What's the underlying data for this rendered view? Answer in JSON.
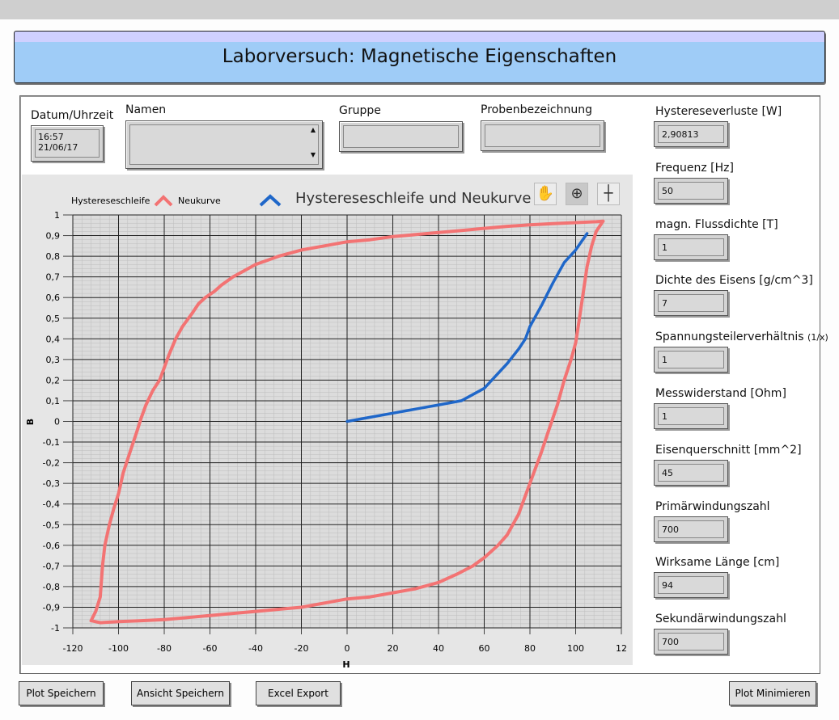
{
  "header": {
    "title": "Laborversuch: Magnetische Eigenschaften"
  },
  "info": {
    "datetime_label": "Datum/Uhrzeit",
    "time": "16:57",
    "date": "21/06/17",
    "names_label": "Namen",
    "names_value": "",
    "group_label": "Gruppe",
    "group_value": "",
    "sample_label": "Probenbezeichnung",
    "sample_value": ""
  },
  "parameters": [
    {
      "label": "Hystereseverluste [W]",
      "value": "2,90813"
    },
    {
      "label": "Frequenz [Hz]",
      "value": "50"
    },
    {
      "label": "magn. Flussdichte [T]",
      "value": "1"
    },
    {
      "label": "Dichte des Eisens [g/cm^3]",
      "value": "7"
    },
    {
      "label": "Spannungsteilerverhältnis",
      "label_suffix": "(1/x)",
      "value": "1"
    },
    {
      "label": "Messwiderstand [Ohm]",
      "value": "1"
    },
    {
      "label": "Eisenquerschnitt [mm^2]",
      "value": "45"
    },
    {
      "label": "Primärwindungszahl",
      "value": "700"
    },
    {
      "label": "Wirksame Länge [cm]",
      "value": "94"
    },
    {
      "label": "Sekundärwindungszahl",
      "value": "700"
    }
  ],
  "buttons": {
    "plot_save": "Plot Speichern",
    "view_save": "Ansicht Speichern",
    "excel_export": "Excel Export",
    "plot_minimize": "Plot Minimieren"
  },
  "tools": [
    "hand-icon",
    "zoom-icon",
    "crosshair-icon"
  ],
  "chart_data": {
    "type": "line",
    "title": "Hystereseschleife und Neukurve",
    "xlabel": "H",
    "ylabel": "B",
    "xlim": [
      -120,
      120
    ],
    "ylim": [
      -1,
      1
    ],
    "x_ticks": [
      "-120",
      "-100",
      "-80",
      "-60",
      "-40",
      "-20",
      "0",
      "20",
      "40",
      "60",
      "80",
      "100",
      "12"
    ],
    "y_ticks": [
      "1",
      "0,9",
      "0,8",
      "0,7",
      "0,6",
      "0,5",
      "0,4",
      "0,3",
      "0,2",
      "0,1",
      "0",
      "-0,1",
      "-0,2",
      "-0,3",
      "-0,4",
      "-0,5",
      "-0,6",
      "-0,7",
      "-0,8",
      "-0,9",
      "-1"
    ],
    "grid": true,
    "legend_position": "top-left",
    "series": [
      {
        "name": "Hystereseschleife",
        "color": "#f37373",
        "x": [
          112,
          109,
          107,
          105,
          103,
          101,
          100,
          98,
          95,
          92,
          88,
          85,
          80,
          75,
          70,
          66,
          63,
          60,
          55,
          48,
          40,
          30,
          20,
          10,
          0,
          -10,
          -20,
          -30,
          -40,
          -50,
          -60,
          -70,
          -80,
          -90,
          -100,
          -108,
          -112,
          -110,
          -108,
          -107,
          -106,
          -104,
          -102,
          -100,
          -98,
          -95,
          -92,
          -90,
          -88,
          -85,
          -82,
          -80,
          -78,
          -75,
          -72,
          -68,
          -65,
          -62,
          -58,
          -55,
          -50,
          -45,
          -40,
          -35,
          -30,
          -20,
          -10,
          0,
          10,
          20,
          30,
          40,
          50,
          60,
          70,
          80,
          90,
          100,
          109,
          112
        ],
        "y": [
          0.97,
          0.92,
          0.85,
          0.75,
          0.6,
          0.45,
          0.38,
          0.3,
          0.2,
          0.08,
          -0.05,
          -0.15,
          -0.3,
          -0.45,
          -0.55,
          -0.6,
          -0.63,
          -0.66,
          -0.7,
          -0.74,
          -0.78,
          -0.81,
          -0.83,
          -0.85,
          -0.86,
          -0.88,
          -0.9,
          -0.91,
          -0.92,
          -0.93,
          -0.94,
          -0.95,
          -0.96,
          -0.965,
          -0.97,
          -0.975,
          -0.965,
          -0.92,
          -0.85,
          -0.7,
          -0.6,
          -0.5,
          -0.42,
          -0.35,
          -0.25,
          -0.15,
          -0.05,
          0.02,
          0.08,
          0.15,
          0.2,
          0.26,
          0.32,
          0.4,
          0.46,
          0.52,
          0.57,
          0.6,
          0.63,
          0.66,
          0.7,
          0.73,
          0.76,
          0.78,
          0.8,
          0.83,
          0.85,
          0.87,
          0.88,
          0.895,
          0.905,
          0.915,
          0.925,
          0.935,
          0.945,
          0.952,
          0.958,
          0.963,
          0.967,
          0.97
        ]
      },
      {
        "name": "Neukurve",
        "color": "#1f67c9",
        "x": [
          0,
          10,
          20,
          30,
          40,
          50,
          60,
          65,
          70,
          75,
          78,
          80,
          85,
          90,
          95,
          100,
          105
        ],
        "y": [
          0,
          0.02,
          0.04,
          0.06,
          0.08,
          0.1,
          0.16,
          0.22,
          0.28,
          0.35,
          0.4,
          0.46,
          0.56,
          0.67,
          0.77,
          0.83,
          0.91
        ]
      }
    ]
  }
}
